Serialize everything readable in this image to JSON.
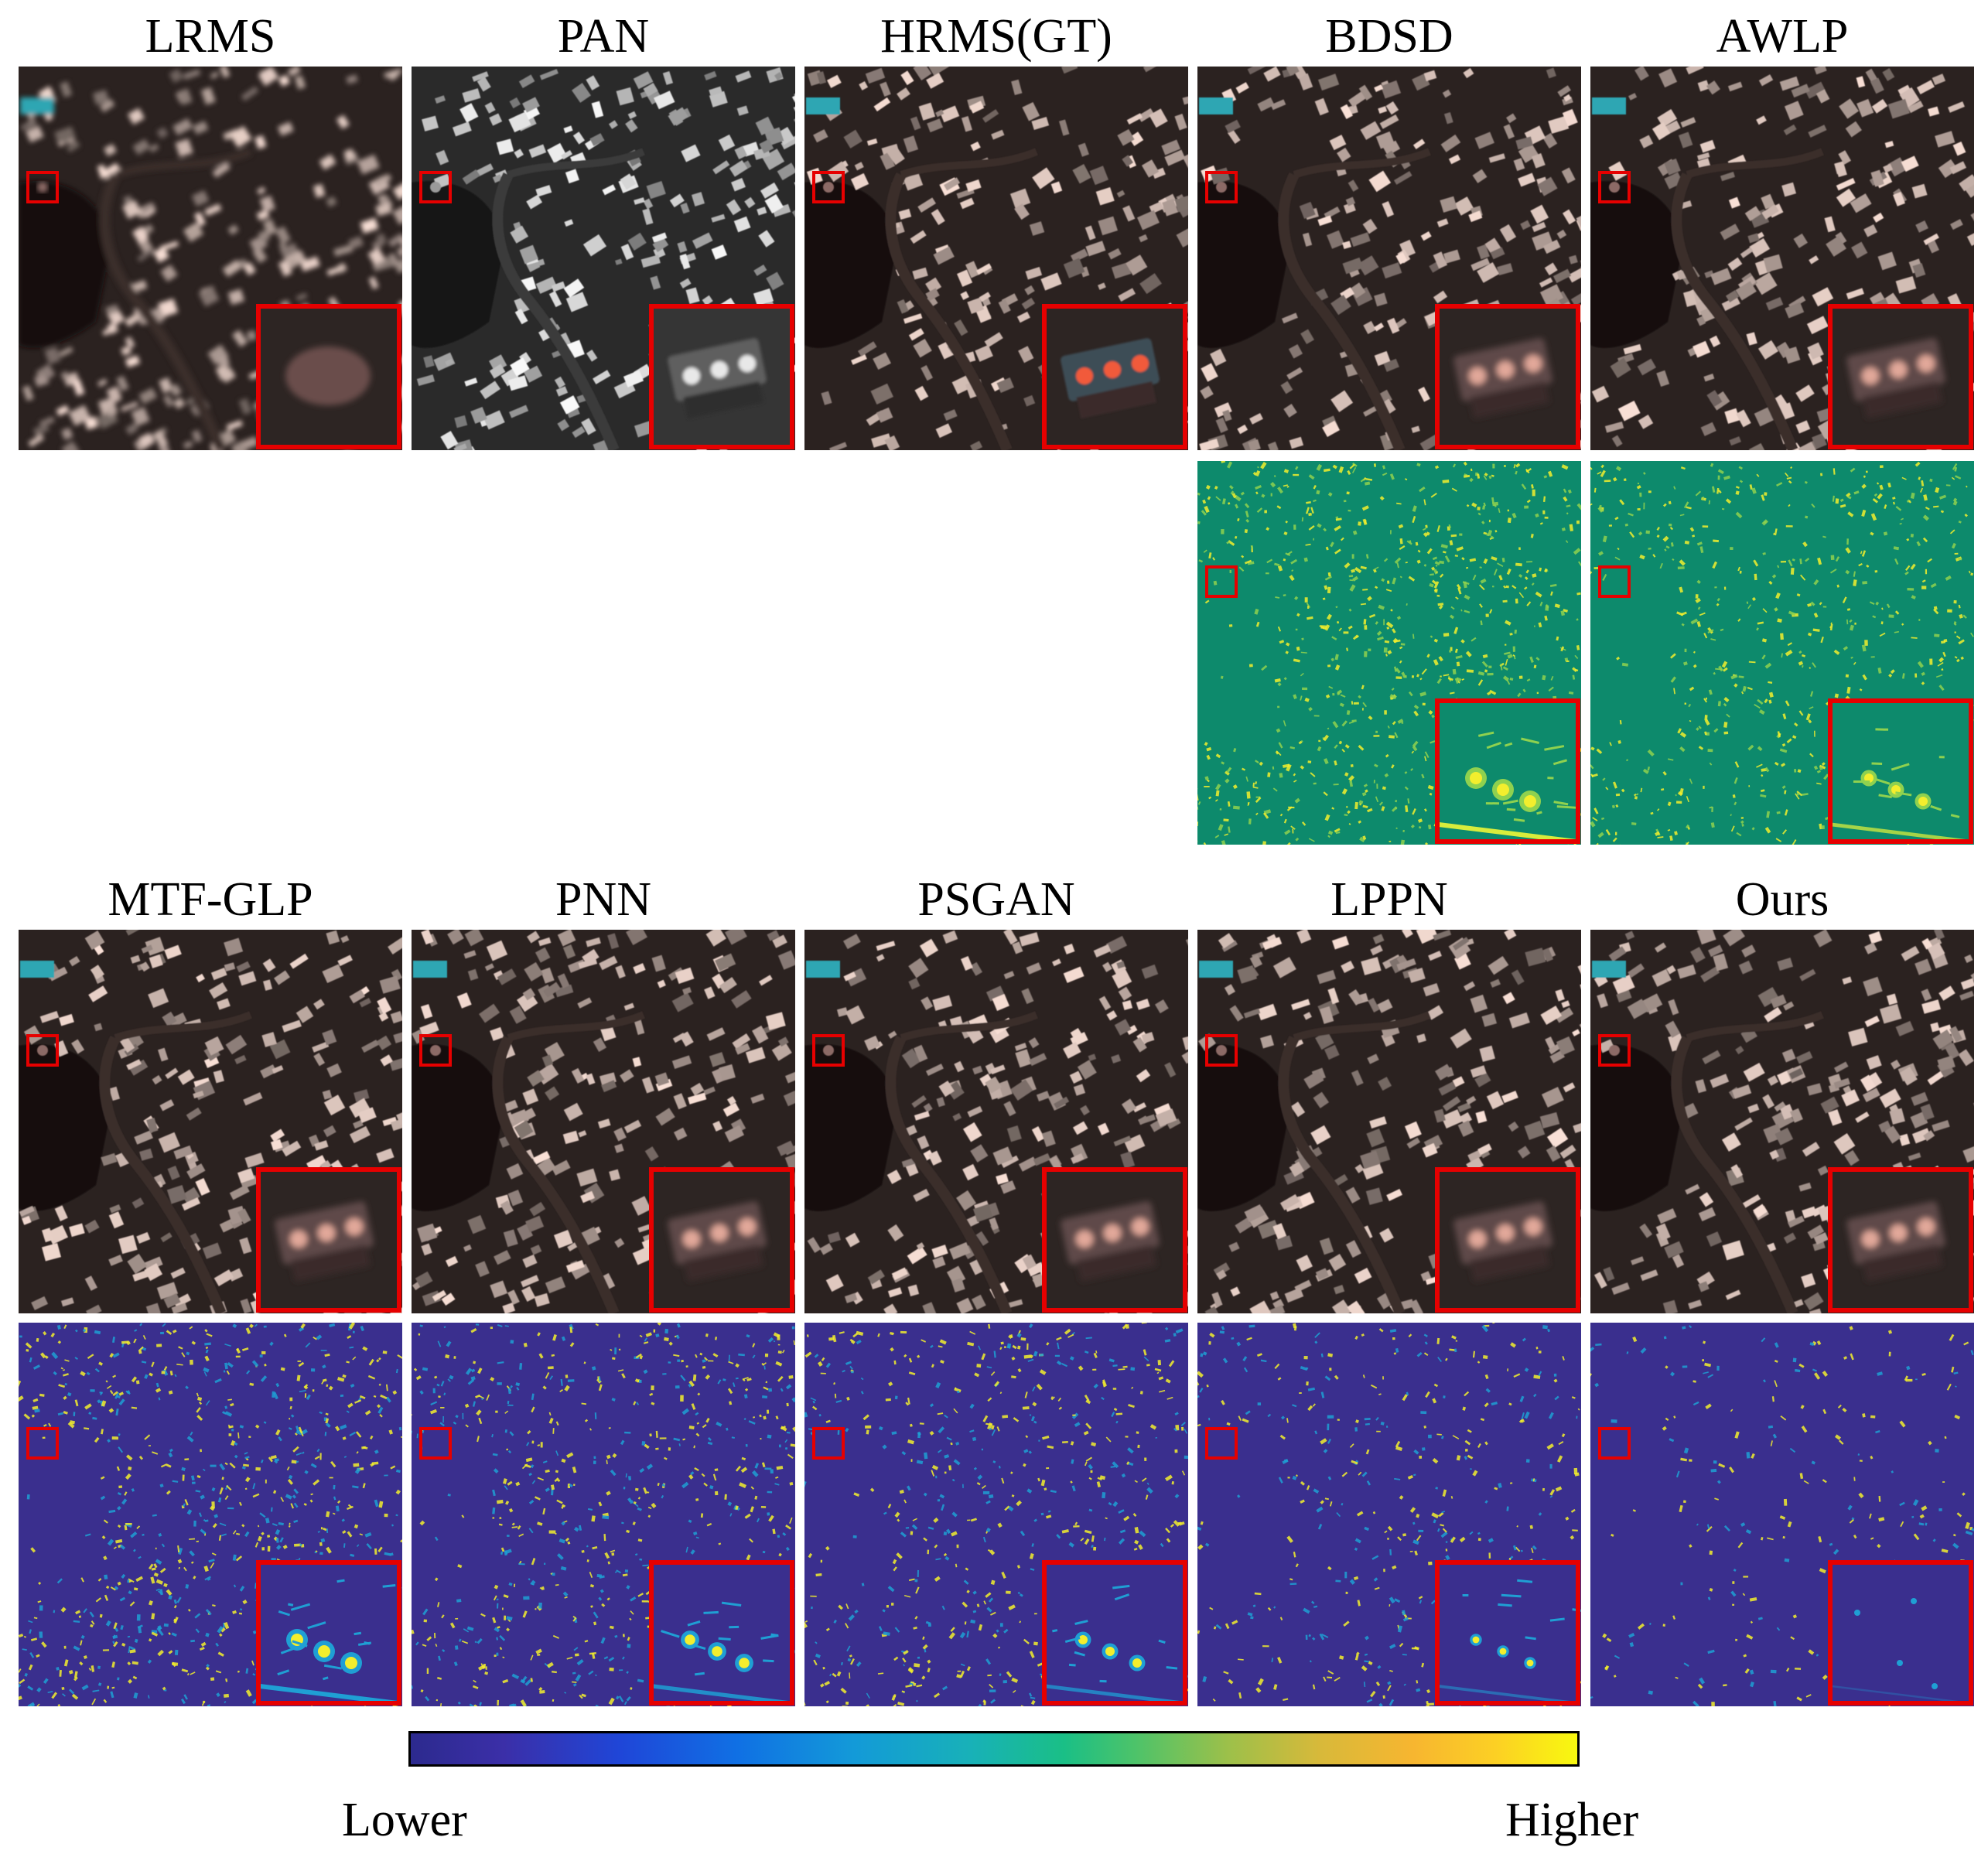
{
  "figure": {
    "top_row_titles": [
      "LRMS",
      "PAN",
      "HRMS(GT)",
      "BDSD",
      "AWLP"
    ],
    "bottom_row_titles": [
      "MTF-GLP",
      "PNN",
      "PSGAN",
      "LPPN",
      "Ours"
    ]
  },
  "colorbar": {
    "low_label": "Lower",
    "high_label": "Higher"
  },
  "colors": {
    "highlight_box": "#e60000",
    "error_bg_bdsd_awlp": "#0d8a6c",
    "error_bg_others": "#3a2f8e",
    "error_peak": "#f3ee2d"
  }
}
